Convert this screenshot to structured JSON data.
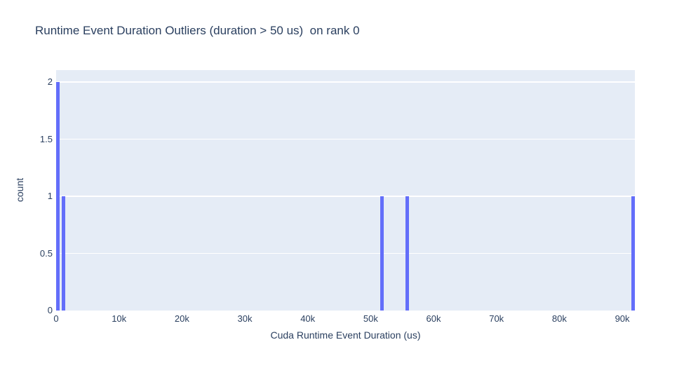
{
  "chart_data": {
    "type": "histogram",
    "title": "Runtime Event Duration Outliers (duration > 50 us)  on rank 0",
    "xlabel": "Cuda Runtime Event Duration (us)",
    "ylabel": "count",
    "xlim": [
      0,
      92000
    ],
    "ylim": [
      0,
      2.105
    ],
    "xticks": [
      {
        "v": 0,
        "label": "0"
      },
      {
        "v": 10000,
        "label": "10k"
      },
      {
        "v": 20000,
        "label": "20k"
      },
      {
        "v": 30000,
        "label": "30k"
      },
      {
        "v": 40000,
        "label": "40k"
      },
      {
        "v": 50000,
        "label": "50k"
      },
      {
        "v": 60000,
        "label": "60k"
      },
      {
        "v": 70000,
        "label": "70k"
      },
      {
        "v": 80000,
        "label": "80k"
      },
      {
        "v": 90000,
        "label": "90k"
      }
    ],
    "yticks": [
      {
        "v": 0,
        "label": "0"
      },
      {
        "v": 0.5,
        "label": "0.5"
      },
      {
        "v": 1,
        "label": "1"
      },
      {
        "v": 1.5,
        "label": "1.5"
      },
      {
        "v": 2,
        "label": "2"
      }
    ],
    "bars": [
      {
        "x": 280,
        "count": 2
      },
      {
        "x": 1170,
        "count": 1
      },
      {
        "x": 51770,
        "count": 1
      },
      {
        "x": 55840,
        "count": 1
      },
      {
        "x": 91720,
        "count": 1
      }
    ],
    "bar_width_us": 560,
    "grid": "horizontal",
    "legend": "none"
  },
  "colors": {
    "bar": "#636efa",
    "plot_bg": "#e5ecf6",
    "grid_line": "#ffffff",
    "text": "#2a3f5f",
    "paper_bg": "#ffffff"
  }
}
